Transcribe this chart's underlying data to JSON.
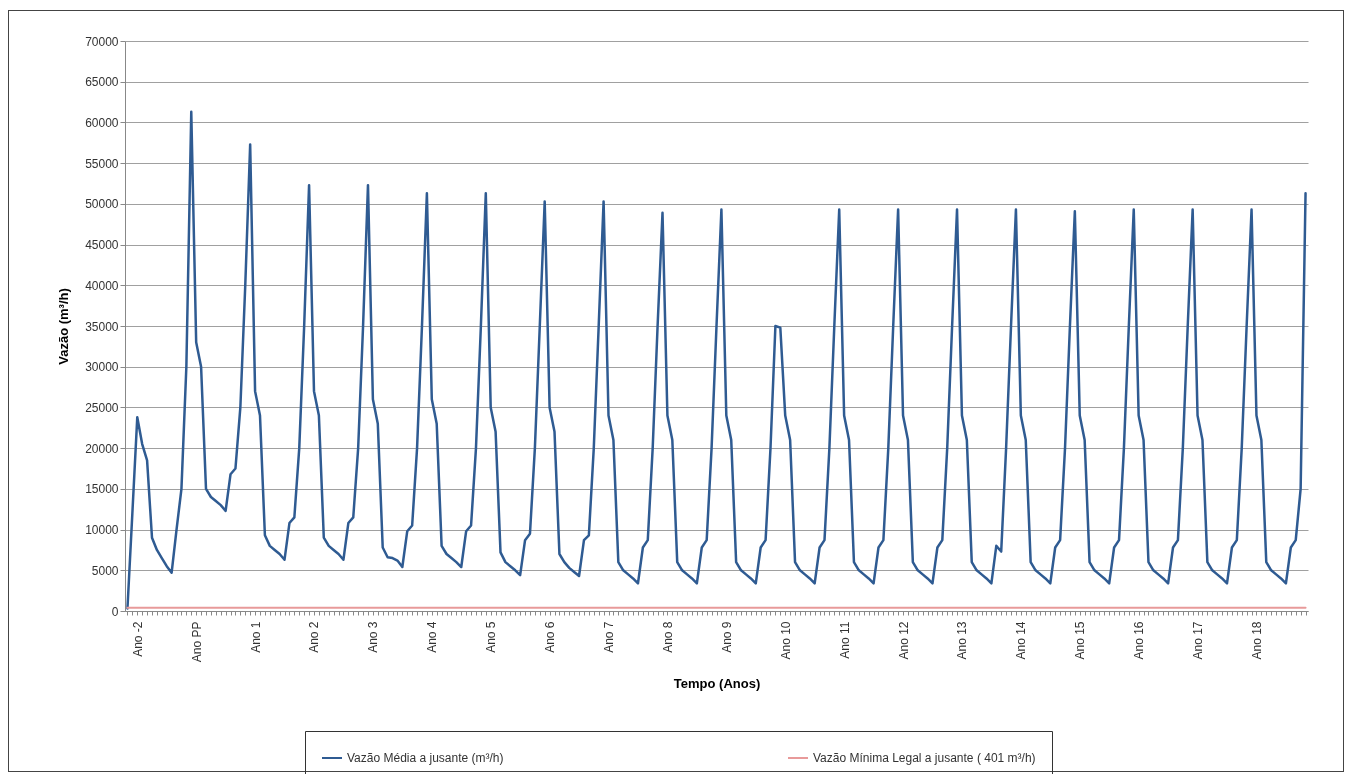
{
  "chart_data": {
    "type": "line",
    "xlabel": "Tempo (Anos)",
    "ylabel": "Vazão  (m³/h)",
    "categories": [
      null,
      null,
      "Ano -2",
      null,
      null,
      null,
      null,
      null,
      null,
      null,
      null,
      null,
      null,
      null,
      "Ano  PP",
      null,
      null,
      null,
      null,
      null,
      null,
      null,
      null,
      null,
      null,
      null,
      "Ano 1",
      null,
      null,
      null,
      null,
      null,
      null,
      null,
      null,
      null,
      null,
      null,
      "Ano 2",
      null,
      null,
      null,
      null,
      null,
      null,
      null,
      null,
      null,
      null,
      null,
      "Ano 3",
      null,
      null,
      null,
      null,
      null,
      null,
      null,
      null,
      null,
      null,
      null,
      "Ano 4",
      null,
      null,
      null,
      null,
      null,
      null,
      null,
      null,
      null,
      null,
      null,
      "Ano 5",
      null,
      null,
      null,
      null,
      null,
      null,
      null,
      null,
      null,
      null,
      null,
      "Ano 6",
      null,
      null,
      null,
      null,
      null,
      null,
      null,
      null,
      null,
      null,
      null,
      "Ano 7",
      null,
      null,
      null,
      null,
      null,
      null,
      null,
      null,
      null,
      null,
      null,
      "Ano 8",
      null,
      null,
      null,
      null,
      null,
      null,
      null,
      null,
      null,
      null,
      null,
      "Ano 9",
      null,
      null,
      null,
      null,
      null,
      null,
      null,
      null,
      null,
      null,
      null,
      "Ano 10",
      null,
      null,
      null,
      null,
      null,
      null,
      null,
      null,
      null,
      null,
      null,
      "Ano 11",
      null,
      null,
      null,
      null,
      null,
      null,
      null,
      null,
      null,
      null,
      null,
      "Ano 12",
      null,
      null,
      null,
      null,
      null,
      null,
      null,
      null,
      null,
      null,
      null,
      "Ano 13",
      null,
      null,
      null,
      null,
      null,
      null,
      null,
      null,
      null,
      null,
      null,
      "Ano 14",
      null,
      null,
      null,
      null,
      null,
      null,
      null,
      null,
      null,
      null,
      null,
      "Ano 15",
      null,
      null,
      null,
      null,
      null,
      null,
      null,
      null,
      null,
      null,
      null,
      "Ano 16",
      null,
      null,
      null,
      null,
      null,
      null,
      null,
      null,
      null,
      null,
      null,
      "Ano 17",
      null,
      null,
      null,
      null,
      null,
      null,
      null,
      null,
      null,
      null,
      null,
      "Ano 18",
      null,
      null,
      null,
      null,
      null,
      null,
      null,
      null,
      null,
      null
    ],
    "ylim": [
      0,
      70000
    ],
    "yticks": [
      0,
      5000,
      10000,
      15000,
      20000,
      25000,
      30000,
      35000,
      40000,
      45000,
      50000,
      55000,
      60000,
      65000,
      70000
    ],
    "grid": "y",
    "legend": "bottom",
    "line_style": "solid",
    "series": [
      {
        "name": "Vazão Média a jusante (m³/h)",
        "color": "#2f5b92",
        "values": [
          300,
          12000,
          23800,
          20500,
          18500,
          9000,
          7500,
          6500,
          5500,
          4700,
          10000,
          15000,
          30000,
          61300,
          33000,
          30000,
          15000,
          14000,
          13500,
          13000,
          12300,
          16800,
          17500,
          25000,
          40000,
          57300,
          27000,
          24000,
          9300,
          8000,
          7500,
          7000,
          6300,
          10800,
          11500,
          20000,
          35000,
          52300,
          27000,
          24000,
          9000,
          8000,
          7500,
          7000,
          6300,
          10800,
          11500,
          20000,
          35000,
          52300,
          26000,
          23000,
          7800,
          6600,
          6500,
          6200,
          5400,
          9800,
          10500,
          20000,
          35000,
          51300,
          26000,
          23000,
          8000,
          7000,
          6500,
          6000,
          5400,
          9800,
          10500,
          20000,
          35000,
          51300,
          25000,
          22000,
          7200,
          6000,
          5500,
          5000,
          4400,
          8700,
          9500,
          20000,
          35000,
          50300,
          25000,
          22000,
          7000,
          6000,
          5300,
          4800,
          4300,
          8700,
          9300,
          20000,
          35000,
          50300,
          24000,
          21000,
          6000,
          5000,
          4500,
          4000,
          3400,
          7800,
          8700,
          20000,
          35000,
          48900,
          24000,
          21000,
          6000,
          5000,
          4500,
          4000,
          3400,
          7800,
          8700,
          20000,
          35000,
          49300,
          24000,
          21000,
          6000,
          5000,
          4500,
          4000,
          3400,
          7800,
          8700,
          20000,
          35000,
          34800,
          24000,
          21000,
          6000,
          5000,
          4500,
          4000,
          3400,
          7800,
          8700,
          20000,
          35000,
          49300,
          24000,
          21000,
          6000,
          5000,
          4500,
          4000,
          3400,
          7800,
          8700,
          20000,
          35000,
          49300,
          24000,
          21000,
          6000,
          5000,
          4500,
          4000,
          3400,
          7800,
          8700,
          20000,
          35000,
          49300,
          24000,
          21000,
          6000,
          5000,
          4500,
          4000,
          3400,
          8000,
          7300,
          20000,
          35000,
          49300,
          24000,
          21000,
          6000,
          5000,
          4500,
          4000,
          3400,
          7800,
          8700,
          20000,
          35000,
          49100,
          24000,
          21000,
          6000,
          5000,
          4500,
          4000,
          3400,
          7800,
          8700,
          20000,
          35000,
          49300,
          24000,
          21000,
          6000,
          5000,
          4500,
          4000,
          3400,
          7800,
          8700,
          20000,
          35000,
          49300,
          24000,
          21000,
          6000,
          5000,
          4500,
          4000,
          3400,
          7800,
          8700,
          20000,
          35000,
          49300,
          24000,
          21000,
          6000,
          5000,
          4500,
          4000,
          3400,
          7800,
          8700,
          15000,
          51300
        ]
      },
      {
        "name": "Vazão Mínima Legal a jusante ( 401 m³/h)",
        "color": "#e89a9a",
        "values": [
          401,
          401,
          401,
          401,
          401,
          401,
          401,
          401,
          401,
          401,
          401,
          401,
          401,
          401,
          401,
          401,
          401,
          401,
          401,
          401,
          401,
          401,
          401,
          401,
          401,
          401,
          401,
          401,
          401,
          401,
          401,
          401,
          401,
          401,
          401,
          401,
          401,
          401,
          401,
          401,
          401,
          401,
          401,
          401,
          401,
          401,
          401,
          401,
          401,
          401,
          401,
          401,
          401,
          401,
          401,
          401,
          401,
          401,
          401,
          401,
          401,
          401,
          401,
          401,
          401,
          401,
          401,
          401,
          401,
          401,
          401,
          401,
          401,
          401,
          401,
          401,
          401,
          401,
          401,
          401,
          401,
          401,
          401,
          401,
          401,
          401,
          401,
          401,
          401,
          401,
          401,
          401,
          401,
          401,
          401,
          401,
          401,
          401,
          401,
          401,
          401,
          401,
          401,
          401,
          401,
          401,
          401,
          401,
          401,
          401,
          401,
          401,
          401,
          401,
          401,
          401,
          401,
          401,
          401,
          401,
          401,
          401,
          401,
          401,
          401,
          401,
          401,
          401,
          401,
          401,
          401,
          401,
          401,
          401,
          401,
          401,
          401,
          401,
          401,
          401,
          401,
          401,
          401,
          401,
          401,
          401,
          401,
          401,
          401,
          401,
          401,
          401,
          401,
          401,
          401,
          401,
          401,
          401,
          401,
          401,
          401,
          401,
          401,
          401,
          401,
          401,
          401,
          401,
          401,
          401,
          401,
          401,
          401,
          401,
          401,
          401,
          401,
          401,
          401,
          401,
          401,
          401,
          401,
          401,
          401,
          401,
          401,
          401,
          401,
          401,
          401,
          401,
          401,
          401,
          401,
          401,
          401,
          401,
          401,
          401,
          401,
          401,
          401,
          401,
          401,
          401,
          401,
          401,
          401,
          401,
          401,
          401,
          401,
          401,
          401,
          401,
          401,
          401,
          401,
          401,
          401,
          401,
          401,
          401,
          401,
          401,
          401,
          401,
          401,
          401,
          401,
          401,
          401,
          401,
          401,
          401,
          401,
          401,
          401,
          401,
          401
        ]
      }
    ]
  }
}
